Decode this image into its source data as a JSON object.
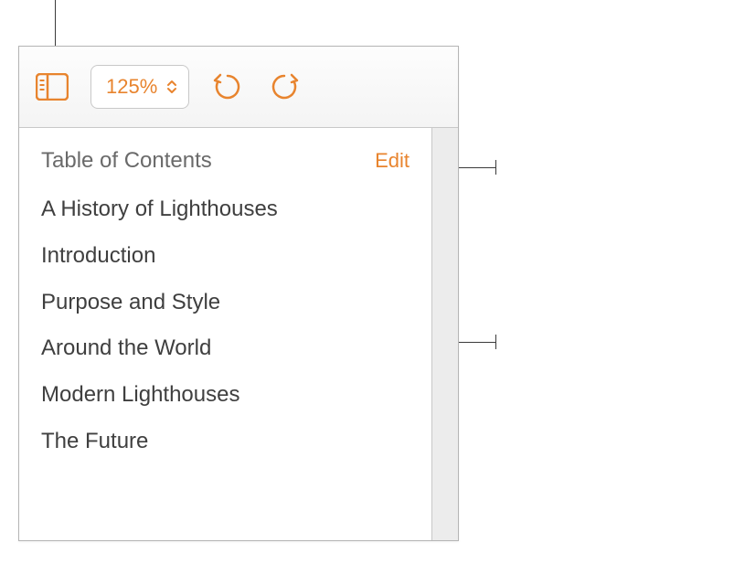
{
  "accent_color": "#e8842e",
  "toolbar": {
    "zoom_label": "125%"
  },
  "sidebar": {
    "title": "Table of Contents",
    "edit_label": "Edit",
    "entries": [
      {
        "label": "A History of Lighthouses",
        "level": 1
      },
      {
        "label": "Introduction",
        "level": 2
      },
      {
        "label": "Purpose and Style",
        "level": 3
      },
      {
        "label": "Around the World",
        "level": 3
      },
      {
        "label": "Modern Lighthouses",
        "level": 2
      },
      {
        "label": "The Future",
        "level": 2
      }
    ]
  }
}
